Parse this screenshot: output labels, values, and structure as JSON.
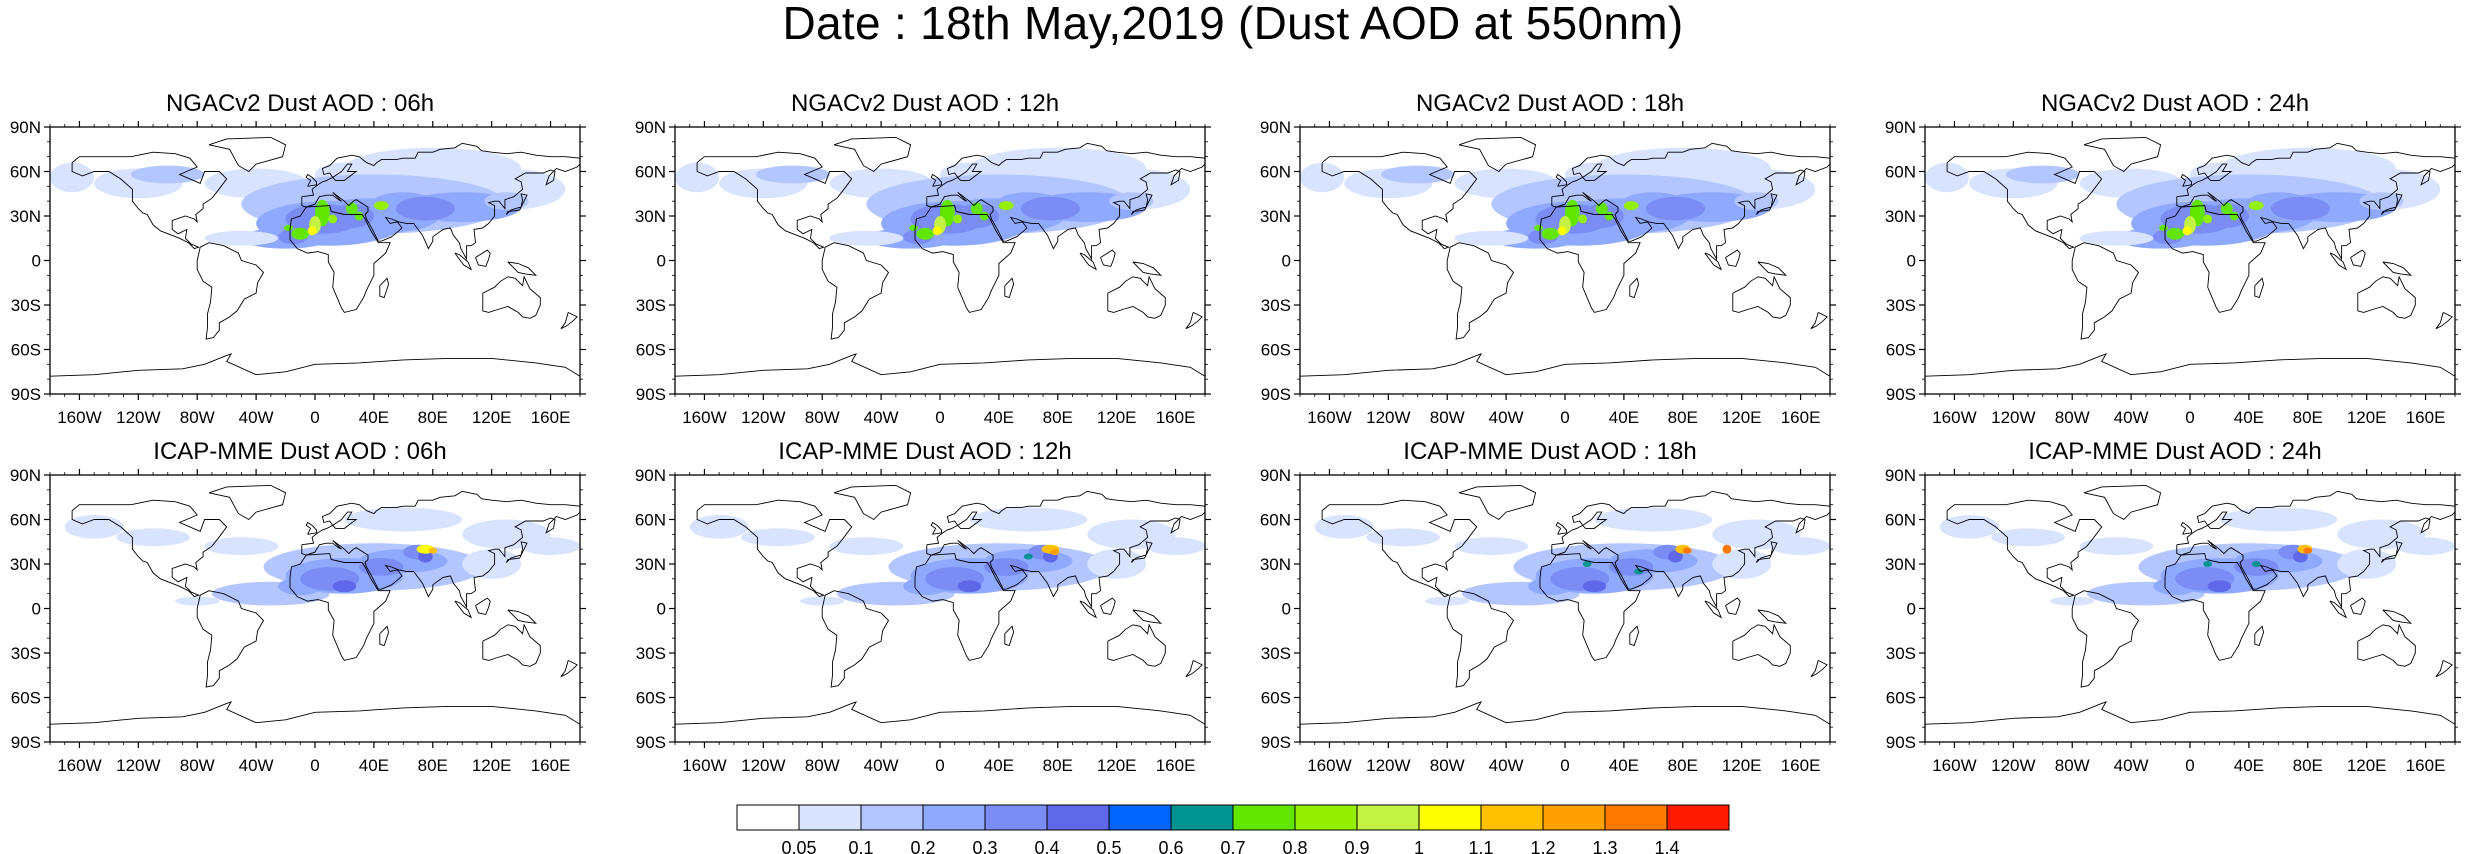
{
  "title": "Date : 18th May,2019 (Dust AOD at 550nm)",
  "colors": {
    "coastline": "#000000",
    "levels": [
      "#ffffff",
      "#d7e3ff",
      "#b3c6ff",
      "#8fa9ff",
      "#7b8cf5",
      "#6068ea",
      "#0064ff",
      "#00938f",
      "#62e600",
      "#94f000",
      "#c4f244",
      "#ffff00",
      "#ffc000",
      "#ffa000",
      "#ff7800",
      "#ff1a00"
    ]
  },
  "chart_data": {
    "type": "heatmap",
    "variable": "Dust AOD at 550nm",
    "date": "18th May,2019",
    "lat_ticks": [
      "90N",
      "60N",
      "30N",
      "0",
      "30S",
      "60S",
      "90S"
    ],
    "lon_ticks": [
      "160W",
      "120W",
      "80W",
      "40W",
      "0",
      "40E",
      "80E",
      "120E",
      "160E"
    ],
    "colorbar": {
      "levels": [
        "0.05",
        "0.1",
        "0.2",
        "0.3",
        "0.4",
        "0.5",
        "0.6",
        "0.7",
        "0.8",
        "0.9",
        "1",
        "1.1",
        "1.2",
        "1.3",
        "1.4"
      ],
      "colors": [
        "#ffffff",
        "#d7e3ff",
        "#b3c6ff",
        "#8fa9ff",
        "#7b8cf5",
        "#6068ea",
        "#0064ff",
        "#00938f",
        "#62e600",
        "#94f000",
        "#c4f244",
        "#ffff00",
        "#ffc000",
        "#ffa000",
        "#ff7800",
        "#ff1a00"
      ]
    },
    "panels": [
      {
        "id": "ngac-06",
        "title": "NGACv2 Dust AOD : 06h",
        "model": "NGACv2",
        "lead": "06h",
        "max_aod": 1.1
      },
      {
        "id": "ngac-12",
        "title": "NGACv2 Dust AOD : 12h",
        "model": "NGACv2",
        "lead": "12h",
        "max_aod": 1.1
      },
      {
        "id": "ngac-18",
        "title": "NGACv2 Dust AOD : 18h",
        "model": "NGACv2",
        "lead": "18h",
        "max_aod": 1.1
      },
      {
        "id": "ngac-24",
        "title": "NGACv2 Dust AOD : 24h",
        "model": "NGACv2",
        "lead": "24h",
        "max_aod": 1.1
      },
      {
        "id": "icap-06",
        "title": "ICAP-MME Dust AOD : 06h",
        "model": "ICAP-MME",
        "lead": "06h",
        "max_aod": 1.2
      },
      {
        "id": "icap-12",
        "title": "ICAP-MME Dust AOD : 12h",
        "model": "ICAP-MME",
        "lead": "12h",
        "max_aod": 1.3
      },
      {
        "id": "icap-18",
        "title": "ICAP-MME Dust AOD : 18h",
        "model": "ICAP-MME",
        "lead": "18h",
        "max_aod": 1.4
      },
      {
        "id": "icap-24",
        "title": "ICAP-MME Dust AOD : 24h",
        "model": "ICAP-MME",
        "lead": "24h",
        "max_aod": 1.4
      }
    ]
  }
}
